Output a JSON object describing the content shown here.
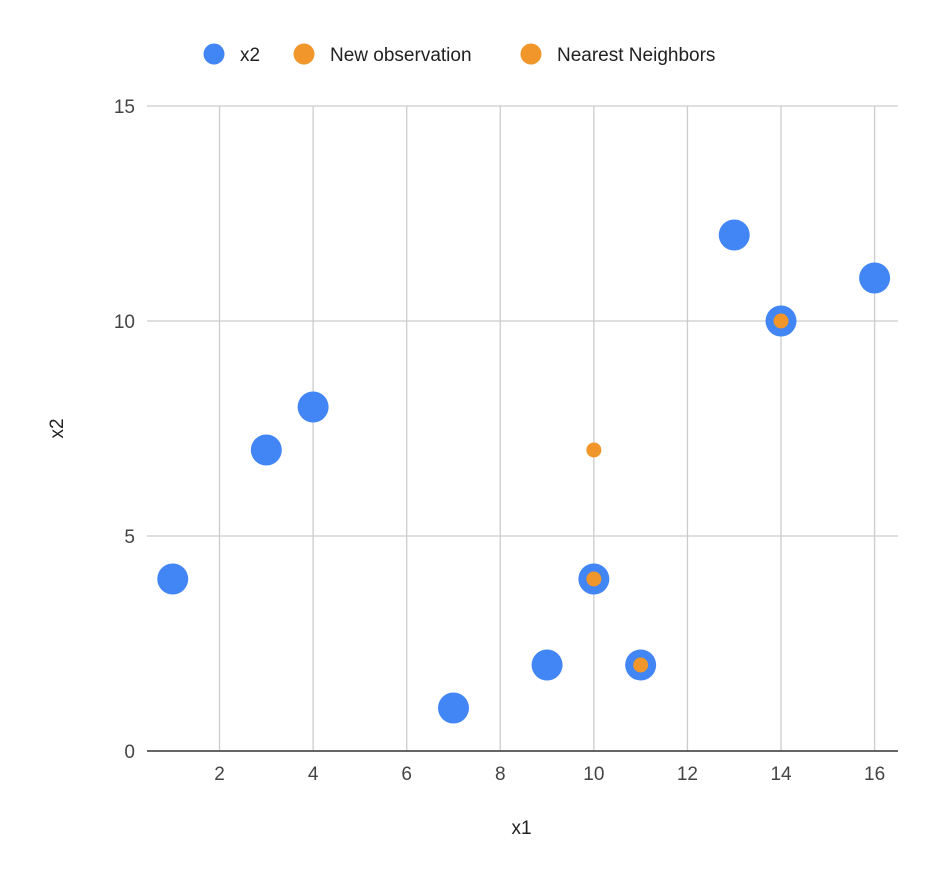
{
  "chart_data": {
    "type": "scatter",
    "title": "",
    "xlabel": "x1",
    "ylabel": "x2",
    "xlim": [
      0.45,
      16.5
    ],
    "ylim": [
      0,
      15
    ],
    "x_ticks": [
      2,
      4,
      6,
      8,
      10,
      12,
      14,
      16
    ],
    "y_ticks": [
      0,
      5,
      10,
      15
    ],
    "grid": true,
    "legend_position": "top",
    "series": [
      {
        "name": "x2",
        "color": "#4285f4",
        "marker": "large-circle",
        "points": [
          {
            "x": 1,
            "y": 4
          },
          {
            "x": 3,
            "y": 7
          },
          {
            "x": 4,
            "y": 8
          },
          {
            "x": 7,
            "y": 1
          },
          {
            "x": 9,
            "y": 2
          },
          {
            "x": 10,
            "y": 4
          },
          {
            "x": 11,
            "y": 2
          },
          {
            "x": 13,
            "y": 12
          },
          {
            "x": 14,
            "y": 10
          },
          {
            "x": 16,
            "y": 11
          }
        ]
      },
      {
        "name": "New observation",
        "color": "#f0962a",
        "marker": "small-circle",
        "points": [
          {
            "x": 10,
            "y": 7
          }
        ]
      },
      {
        "name": "Nearest Neighbors",
        "color": "#f0962a",
        "marker": "small-circle",
        "points": [
          {
            "x": 10,
            "y": 4
          },
          {
            "x": 11,
            "y": 2
          },
          {
            "x": 14,
            "y": 10
          }
        ]
      }
    ]
  }
}
